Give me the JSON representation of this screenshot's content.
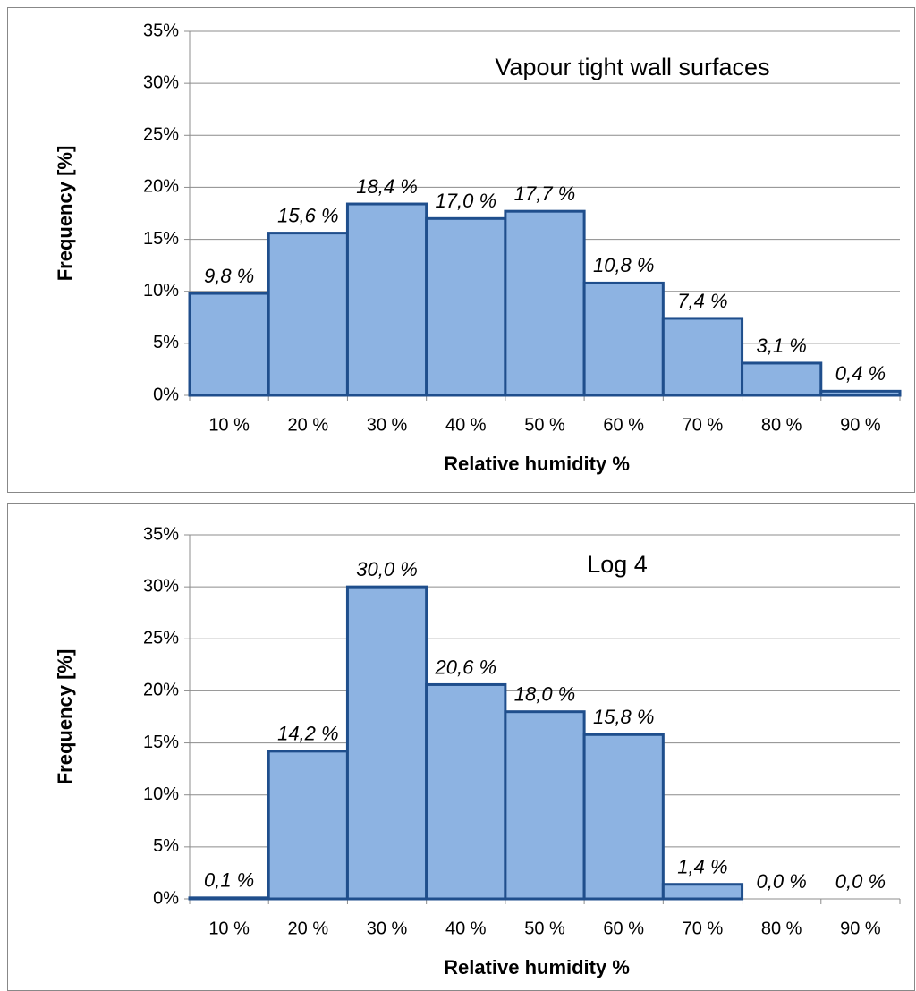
{
  "chart_data": [
    {
      "type": "bar",
      "title": "Vapour tight wall surfaces",
      "categories": [
        "10 %",
        "20 %",
        "30 %",
        "40 %",
        "50 %",
        "60 %",
        "70 %",
        "80 %",
        "90 %"
      ],
      "values": [
        9.8,
        15.6,
        18.4,
        17.0,
        17.7,
        10.8,
        7.4,
        3.1,
        0.4
      ],
      "value_labels": [
        "9,8 %",
        "15,6 %",
        "18,4 %",
        "17,0 %",
        "17,7 %",
        "10,8 %",
        "7,4 %",
        "3,1 %",
        "0,4 %"
      ],
      "color": "#8db3e2",
      "edge_color": "#1f4e8c",
      "xlabel": "Relative humidity  %",
      "ylabel": "Frequency [%]",
      "ylim": [
        0,
        35
      ],
      "yticks": [
        {
          "value": 0,
          "label": "0%"
        },
        {
          "value": 5,
          "label": "5%"
        },
        {
          "value": 10,
          "label": "10%"
        },
        {
          "value": 15,
          "label": "15%"
        },
        {
          "value": 20,
          "label": "20%"
        },
        {
          "value": 25,
          "label": "25%"
        },
        {
          "value": 30,
          "label": "30%"
        },
        {
          "value": 35,
          "label": "35%"
        }
      ],
      "grid": true
    },
    {
      "type": "bar",
      "title": "Log  4",
      "categories": [
        "10 %",
        "20 %",
        "30 %",
        "40 %",
        "50 %",
        "60 %",
        "70 %",
        "80 %",
        "90 %"
      ],
      "values": [
        0.1,
        14.2,
        30.0,
        20.6,
        18.0,
        15.8,
        1.4,
        0.0,
        0.0
      ],
      "value_labels": [
        "0,1 %",
        "14,2 %",
        "30,0 %",
        "20,6 %",
        "18,0 %",
        "15,8 %",
        "1,4 %",
        "0,0 %",
        "0,0 %"
      ],
      "color": "#8db3e2",
      "edge_color": "#1f4e8c",
      "xlabel": "Relative humidity  %",
      "ylabel": "Frequency [%]",
      "ylim": [
        0,
        35
      ],
      "yticks": [
        {
          "value": 0,
          "label": "0%"
        },
        {
          "value": 5,
          "label": "5%"
        },
        {
          "value": 10,
          "label": "10%"
        },
        {
          "value": 15,
          "label": "15%"
        },
        {
          "value": 20,
          "label": "20%"
        },
        {
          "value": 25,
          "label": "25%"
        },
        {
          "value": 30,
          "label": "30%"
        },
        {
          "value": 35,
          "label": "35%"
        }
      ],
      "grid": true
    }
  ]
}
